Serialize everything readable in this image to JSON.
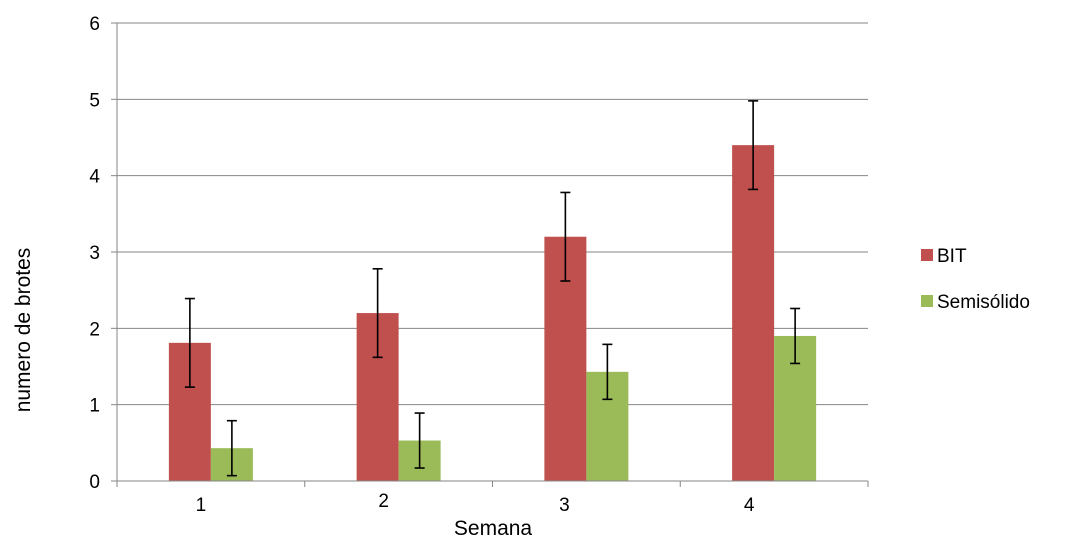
{
  "chart_data": {
    "type": "bar",
    "xlabel": "Semana",
    "ylabel": "numero de brotes",
    "categories": [
      "1",
      "2",
      "3",
      "4"
    ],
    "ylim": [
      0,
      6
    ],
    "yticks": [
      "0",
      "1",
      "2",
      "3",
      "4",
      "5",
      "6"
    ],
    "grid": true,
    "legend_position": "right",
    "series": [
      {
        "name": "BIT",
        "color": "#c0504d",
        "values": [
          1.81,
          2.2,
          3.2,
          4.4
        ],
        "errors": [
          0.58,
          0.58,
          0.58,
          0.58
        ]
      },
      {
        "name": "Semisólido",
        "color": "#9bbb59",
        "values": [
          0.43,
          0.53,
          1.43,
          1.9
        ],
        "errors": [
          0.36,
          0.36,
          0.36,
          0.36
        ]
      }
    ]
  }
}
